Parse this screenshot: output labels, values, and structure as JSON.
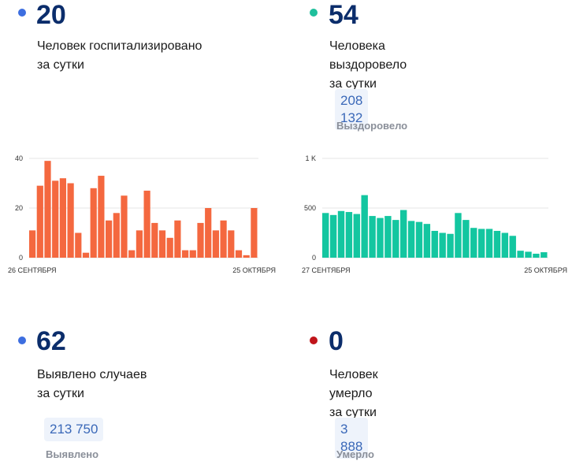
{
  "cards": [
    {
      "value": "20",
      "line1": "Человек госпитализировано",
      "line2": "за сутки",
      "dot_color": "#3d6ee0"
    },
    {
      "value": "54",
      "line1": "Человека выздоровело",
      "line2": "за сутки",
      "dot_color": "#1fbf9c",
      "total": "208 132",
      "total_label": "Выздоровело"
    },
    {
      "value": "62",
      "line1": "Выявлено случаев",
      "line2": "за сутки",
      "dot_color": "#3d6ee0",
      "total": "213 750",
      "total_label": "Выявлено"
    },
    {
      "value": "0",
      "line1": "Человек умерло",
      "line2": "за сутки",
      "dot_color": "#c0141a",
      "total": "3 888",
      "total_label": "Умерло"
    }
  ],
  "chart_data": [
    {
      "type": "bar",
      "color": "#f4683f",
      "x_start_label": "26 СЕНТЯБРЯ",
      "x_end_label": "25 ОКТЯБРЯ",
      "yticks": [
        0,
        20,
        40
      ],
      "ytick_labels": [
        "0",
        "20",
        "40"
      ],
      "ylim": [
        0,
        40
      ],
      "values": [
        11,
        29,
        39,
        31,
        32,
        30,
        10,
        2,
        28,
        33,
        15,
        18,
        25,
        3,
        11,
        27,
        14,
        11,
        8,
        15,
        3,
        3,
        14,
        20,
        11,
        15,
        11,
        3,
        1,
        20
      ]
    },
    {
      "type": "bar",
      "color": "#13c6a0",
      "x_start_label": "27 СЕНТЯБРЯ",
      "x_end_label": "25 ОКТЯБРЯ",
      "yticks": [
        0,
        500,
        1000
      ],
      "ytick_labels": [
        "0",
        "500",
        "1 K"
      ],
      "ylim": [
        0,
        1000
      ],
      "values": [
        450,
        430,
        470,
        460,
        440,
        630,
        420,
        400,
        420,
        380,
        480,
        370,
        360,
        340,
        270,
        250,
        240,
        450,
        380,
        300,
        290,
        290,
        270,
        250,
        220,
        70,
        60,
        40,
        55
      ]
    }
  ]
}
